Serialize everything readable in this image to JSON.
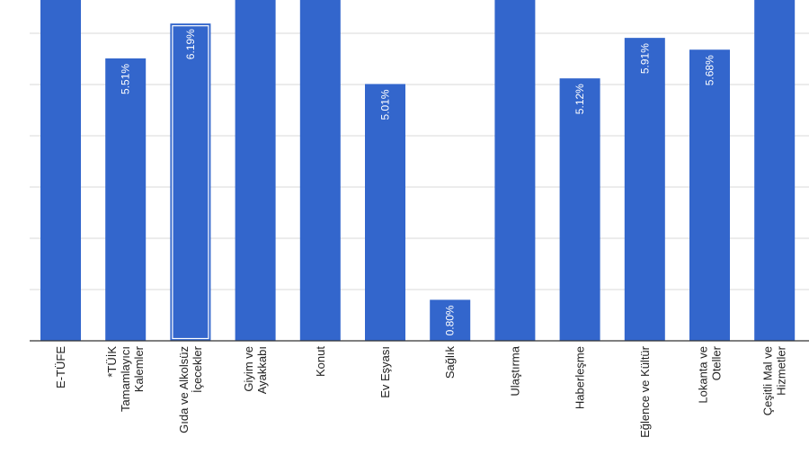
{
  "chart_data": {
    "type": "bar",
    "title": "",
    "xlabel": "",
    "ylabel": "",
    "ylim": [
      0,
      6.65
    ],
    "y_unit": "%",
    "grid": true,
    "gridlines": [
      1,
      2,
      3,
      4,
      5,
      6
    ],
    "bar_color": "#3366cc",
    "categories": [
      [
        "E-TÜFE"
      ],
      [
        "*TÜİK",
        "Tamamlayıcı",
        "Kalemler"
      ],
      [
        "Gıda ve Alkolsüz",
        "İçecekler"
      ],
      [
        "Giyim ve",
        "Ayakkabı"
      ],
      [
        "Konut"
      ],
      [
        "Ev Eşyası"
      ],
      [
        "Sağlık"
      ],
      [
        "Ulaştırma"
      ],
      [
        "Haberleşme"
      ],
      [
        "Eğlence ve Kültür"
      ],
      [
        "Lokanta ve",
        "Oteller"
      ],
      [
        "Çeşitli Mal ve",
        "Hizmetler"
      ]
    ],
    "values": [
      null,
      5.51,
      6.19,
      null,
      null,
      5.01,
      0.8,
      null,
      5.12,
      5.91,
      5.68,
      null
    ],
    "labels": [
      "",
      "5.51%",
      "6.19%",
      "",
      "",
      "5.01%",
      "0.80%",
      "",
      "5.12%",
      "5.91%",
      "5.68%",
      ""
    ],
    "note_values": "null = bar extends beyond the visible top edge; value not shown",
    "highlighted_index": 2
  }
}
